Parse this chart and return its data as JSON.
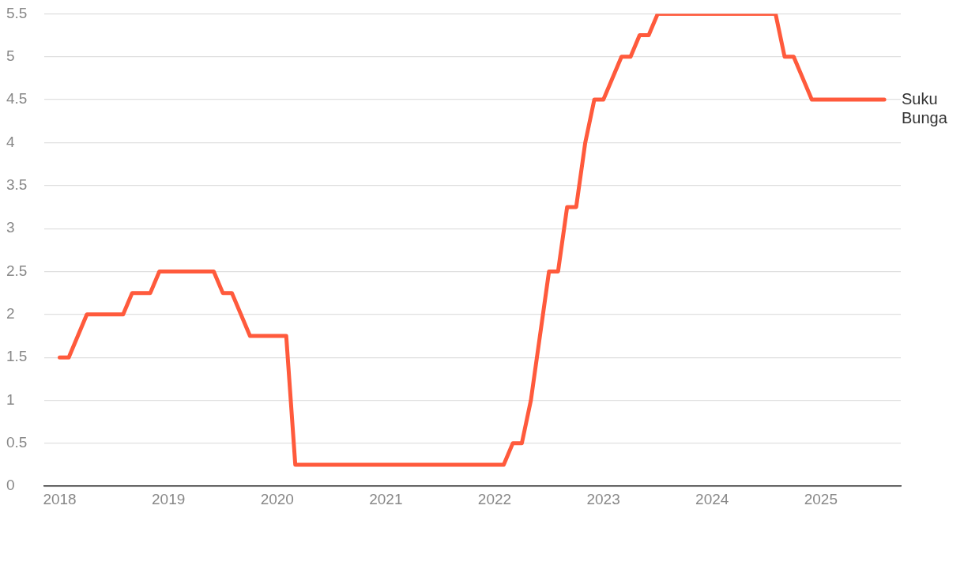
{
  "chart_data": {
    "type": "line",
    "x": [
      "2018-01",
      "2018-02",
      "2018-04",
      "2018-08",
      "2018-09",
      "2018-11",
      "2018-12",
      "2019-06",
      "2019-07",
      "2019-08",
      "2019-10",
      "2020-02",
      "2020-03",
      "2022-02",
      "2022-03",
      "2022-04",
      "2022-05",
      "2022-07",
      "2022-08",
      "2022-09",
      "2022-10",
      "2022-11",
      "2022-12",
      "2023-01",
      "2023-03",
      "2023-04",
      "2023-05",
      "2023-06",
      "2023-07",
      "2024-08",
      "2024-09",
      "2024-10",
      "2024-12",
      "2025-08"
    ],
    "series": [
      {
        "name": "Suku Bunga",
        "color": "#ff5a3c",
        "values": [
          1.5,
          1.5,
          2.0,
          2.0,
          2.25,
          2.25,
          2.5,
          2.5,
          2.25,
          2.25,
          1.75,
          1.75,
          0.25,
          0.25,
          0.5,
          0.5,
          1.0,
          2.5,
          2.5,
          3.25,
          3.25,
          4.0,
          4.5,
          4.5,
          5.0,
          5.0,
          5.25,
          5.25,
          5.5,
          5.5,
          5.0,
          5.0,
          4.5,
          4.5
        ]
      }
    ],
    "xlim": [
      "2017-11-10",
      "2025-09-26"
    ],
    "xticks": [
      "2018",
      "2019",
      "2020",
      "2021",
      "2022",
      "2023",
      "2024",
      "2025"
    ],
    "ylim": [
      0,
      5.5
    ],
    "yticks": [
      0,
      0.5,
      1,
      1.5,
      2,
      2.5,
      3,
      3.5,
      4,
      4.5,
      5,
      5.5
    ],
    "grid": "y",
    "legend": false,
    "marker": "none",
    "line_style": "solid"
  }
}
